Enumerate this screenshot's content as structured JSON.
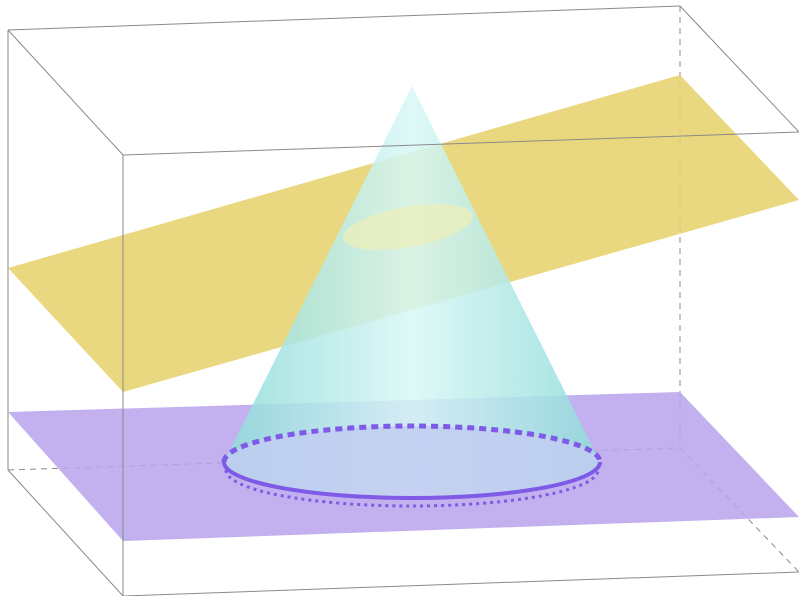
{
  "scene": {
    "background": "#ffffff",
    "colors": {
      "box_edge": "#8a8a8a",
      "yellow_plane": "#e6d16a",
      "purple_plane": "#b7a2ec",
      "cone_fill": "#9fe6e4",
      "cone_highlight": "#d8f7f6",
      "base_ellipse": "#c2cdf1",
      "base_outline": "#7e5ae6",
      "section_ellipse": "#e9e8a8"
    }
  }
}
